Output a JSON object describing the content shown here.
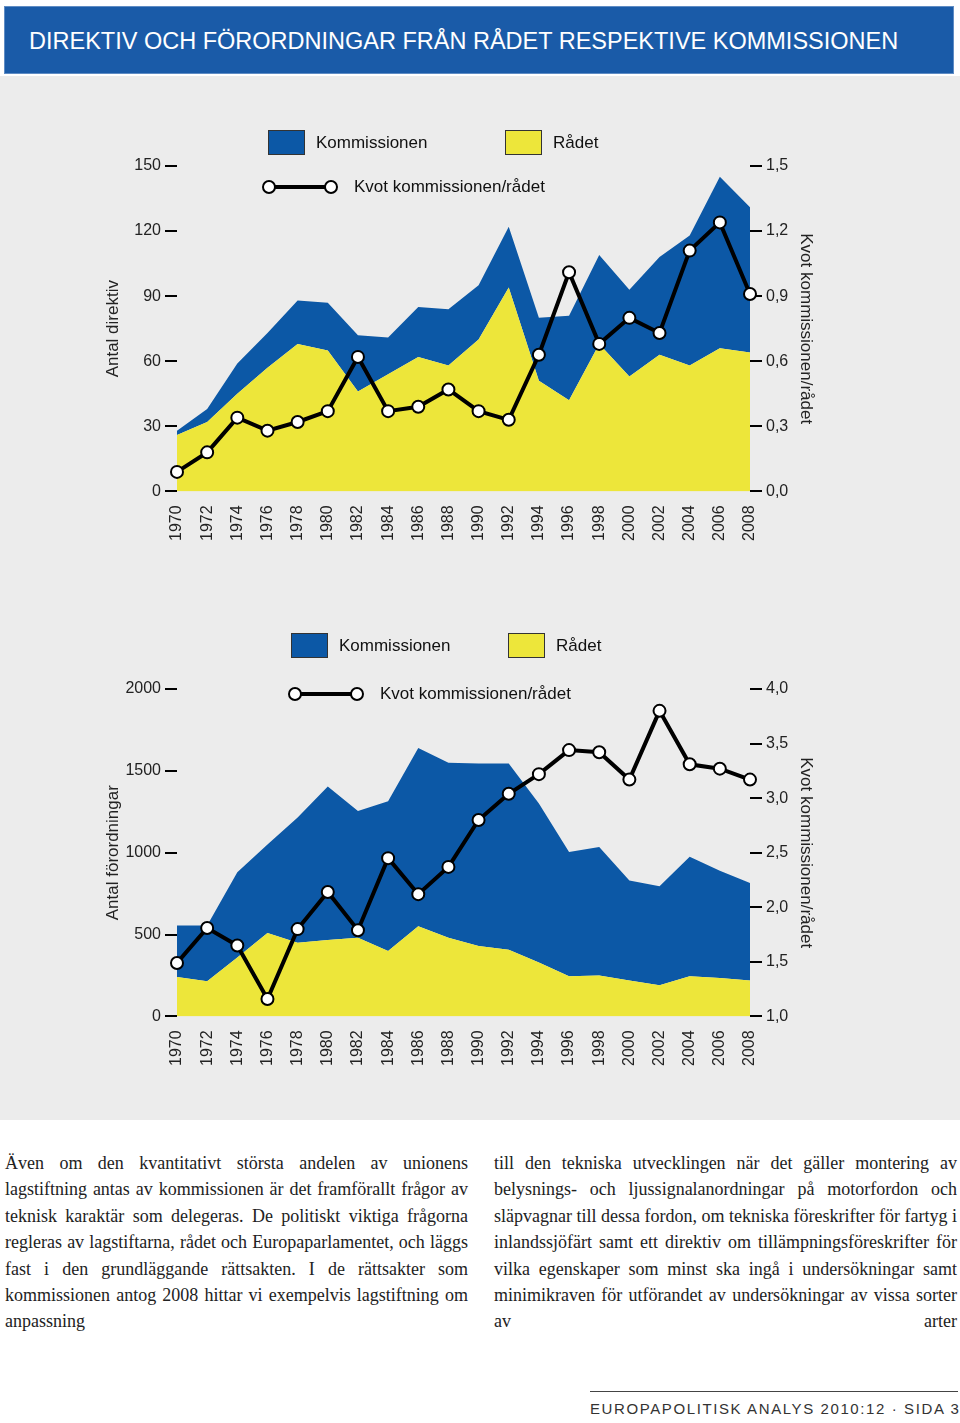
{
  "header": {
    "title": "DIREKTIV OCH FÖRORDNINGAR FRÅN RÅDET RESPEKTIVE KOMMISSIONEN"
  },
  "chart_data": [
    {
      "type": "area",
      "stacked": true,
      "grid": false,
      "legend": "top",
      "y_label": "Antal direktiv",
      "y2_label": "Kvot kommissionen/rådet",
      "categories": [
        "1970",
        "1972",
        "1974",
        "1976",
        "1978",
        "1980",
        "1982",
        "1984",
        "1986",
        "1988",
        "1990",
        "1992",
        "1994",
        "1996",
        "1998",
        "2000",
        "2002",
        "2004",
        "2006",
        "2008"
      ],
      "ylim": [
        0,
        150
      ],
      "yticks": [
        0,
        30,
        60,
        90,
        120,
        150
      ],
      "y2lim": [
        0,
        1.5
      ],
      "y2ticks": [
        {
          "value": 0,
          "label": "0,0"
        },
        {
          "value": 0.3,
          "label": "0,3"
        },
        {
          "value": 0.6,
          "label": "0,6"
        },
        {
          "value": 0.9,
          "label": "0,9"
        },
        {
          "value": 1.2,
          "label": "1,2"
        },
        {
          "value": 1.5,
          "label": "1,5"
        }
      ],
      "series": [
        {
          "name": "Kommissionen",
          "type": "area",
          "color": "#0c58a6",
          "values": [
            2,
            6,
            14,
            16,
            20,
            22,
            26,
            17,
            23,
            26,
            25,
            28,
            29,
            39,
            41,
            40,
            45,
            60,
            79,
            67
          ]
        },
        {
          "name": "Rådet",
          "type": "area",
          "color": "#ede63a",
          "values": [
            26,
            32,
            45,
            57,
            68,
            65,
            46,
            54,
            62,
            58,
            70,
            94,
            51,
            42,
            68,
            53,
            63,
            58,
            66,
            64
          ]
        },
        {
          "name": "Kvot kommissionen/rådet",
          "type": "line",
          "color": "#000000",
          "marker": "circle",
          "axis": "y2",
          "values": [
            0.09,
            0.18,
            0.34,
            0.28,
            0.32,
            0.37,
            0.62,
            0.37,
            0.39,
            0.47,
            0.37,
            0.33,
            0.63,
            1.01,
            0.68,
            0.8,
            0.73,
            1.11,
            1.24,
            0.91
          ]
        }
      ]
    },
    {
      "type": "area",
      "stacked": true,
      "grid": false,
      "legend": "top",
      "y_label": "Antal förordningar",
      "y2_label": "Kvot kommissionen/rådet",
      "categories": [
        "1970",
        "1972",
        "1974",
        "1976",
        "1978",
        "1980",
        "1982",
        "1984",
        "1986",
        "1988",
        "1990",
        "1992",
        "1994",
        "1996",
        "1998",
        "2000",
        "2002",
        "2004",
        "2006",
        "2008"
      ],
      "ylim": [
        0,
        2000
      ],
      "yticks": [
        0,
        500,
        1000,
        1500,
        2000
      ],
      "y2lim": [
        1,
        4
      ],
      "y2ticks": [
        {
          "value": 1,
          "label": "1,0"
        },
        {
          "value": 1.5,
          "label": "1,5"
        },
        {
          "value": 2,
          "label": "2,0"
        },
        {
          "value": 2.5,
          "label": "2,5"
        },
        {
          "value": 3,
          "label": "3,0"
        },
        {
          "value": 3.5,
          "label": "3,5"
        },
        {
          "value": 4,
          "label": "4,0"
        }
      ],
      "series": [
        {
          "name": "Kommissionen",
          "type": "area",
          "color": "#0c58a6",
          "values": [
            315,
            340,
            520,
            540,
            765,
            938,
            775,
            915,
            1090,
            1070,
            1115,
            1138,
            970,
            760,
            785,
            610,
            605,
            730,
            655,
            595
          ]
        },
        {
          "name": "Rådet",
          "type": "area",
          "color": "#ede63a",
          "values": [
            240,
            215,
            360,
            510,
            450,
            467,
            480,
            400,
            550,
            480,
            430,
            407,
            330,
            245,
            250,
            220,
            190,
            245,
            235,
            220
          ]
        },
        {
          "name": "Kvot kommissionen/rådet",
          "type": "line",
          "color": "#000000",
          "marker": "circle",
          "axis": "y2",
          "values": [
            1.49,
            1.81,
            1.65,
            1.16,
            1.8,
            2.14,
            1.79,
            2.45,
            2.12,
            2.37,
            2.8,
            3.04,
            3.22,
            3.44,
            3.42,
            3.17,
            3.8,
            3.31,
            3.27,
            3.17
          ]
        }
      ]
    }
  ],
  "body": {
    "columns": [
      "Även om den kvantitativt största andelen av unionens lagstiftning antas av kommissionen är det framförallt frågor av teknisk karaktär som delegeras. De politiskt viktiga frågorna regleras av lagstiftarna, rådet och Europaparlamentet, och läggs fast i den grundläggande rättsakten. I de rättsakter som kommissionen antog 2008 hittar vi exempelvis lagstiftning om anpassning",
      "till den tekniska utvecklingen när det gäller montering av belysnings- och ljussignalanordningar på motorfordon och släpvagnar till dessa fordon, om tekniska föreskrifter för fartyg i inlandssjöfärt samt ett direktiv om tillämpningsföreskrifter för vilka egenskaper som minst ska ingå i undersökningar samt minimikraven för utförandet av undersökningar av vissa sorter av arter"
    ]
  },
  "footer": "EUROPAPOLITISK ANALYS 2010:12 · SIDA 3"
}
